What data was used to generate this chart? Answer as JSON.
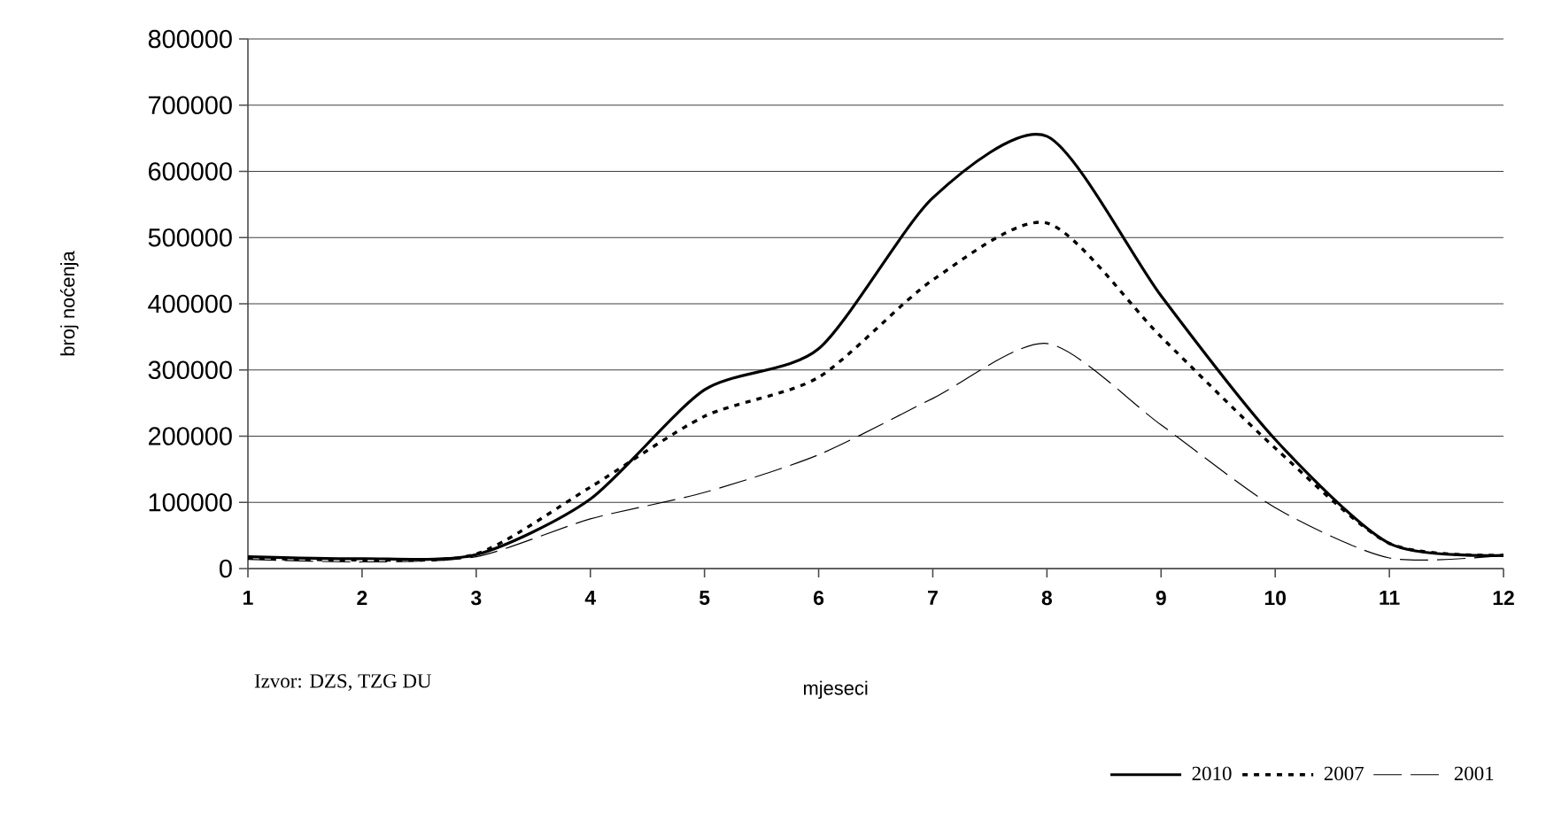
{
  "chart_data": {
    "type": "line",
    "xlabel": "mjeseci",
    "ylabel": "broj noćenja",
    "x": [
      1,
      2,
      3,
      4,
      5,
      6,
      7,
      8,
      9,
      10,
      11,
      12
    ],
    "series": [
      {
        "name": "2010",
        "color": "#000000",
        "line_style": "solid",
        "values": [
          18000,
          15000,
          21000,
          105000,
          270000,
          332000,
          560000,
          653000,
          412000,
          195000,
          38000,
          20000
        ]
      },
      {
        "name": "2007",
        "color": "#000000",
        "line_style": "dotted",
        "values": [
          16000,
          13000,
          22000,
          123000,
          230000,
          289000,
          436000,
          522000,
          350000,
          182000,
          38000,
          20000
        ]
      },
      {
        "name": "2001",
        "color": "#000000",
        "line_style": "dashed",
        "values": [
          14000,
          10000,
          18000,
          75000,
          115000,
          172000,
          257000,
          340000,
          217000,
          92000,
          16000,
          20000
        ]
      }
    ],
    "xlim": [
      1,
      12
    ],
    "xticks": [
      1,
      2,
      3,
      4,
      5,
      6,
      7,
      8,
      9,
      10,
      11,
      12
    ],
    "ylim": [
      0,
      800000
    ],
    "yticks": [
      0,
      100000,
      200000,
      300000,
      400000,
      500000,
      600000,
      700000,
      800000
    ],
    "grid": "y",
    "legend": "bottom right",
    "marker": "none",
    "annotations": [
      "Izvor: DZS, TZG DU"
    ]
  }
}
